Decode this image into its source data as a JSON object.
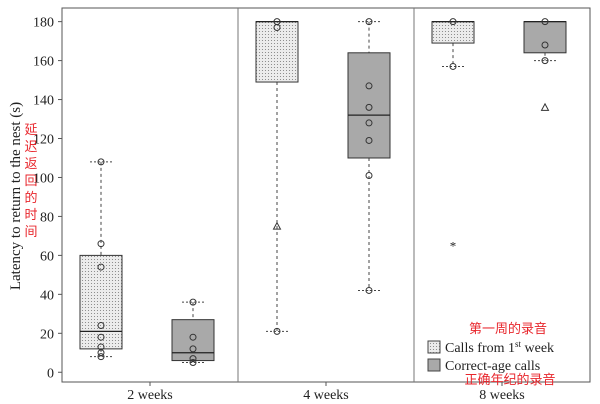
{
  "chart_data": {
    "type": "box",
    "ylabel": "Latency to return to the nest (s)",
    "ylabel_annotation_chinese": [
      "延",
      "迟",
      "返",
      "回",
      "的",
      "时",
      "间"
    ],
    "ylim": [
      -5,
      187
    ],
    "yticks": [
      0,
      20,
      40,
      60,
      80,
      100,
      120,
      140,
      160,
      180
    ],
    "grid": false,
    "panels": [
      {
        "label": "2 weeks",
        "boxes": [
          {
            "series": "Calls from 1st week",
            "q1": 12,
            "median": 21,
            "q3": 60,
            "whisker_low": 8,
            "whisker_high": 108,
            "points": [
              108,
              66,
              54,
              24,
              18,
              13,
              10,
              8
            ],
            "outliers": []
          },
          {
            "series": "Correct-age calls",
            "q1": 6,
            "median": 10,
            "q3": 27,
            "whisker_low": 5,
            "whisker_high": 36,
            "points": [
              36,
              18,
              12,
              7,
              5
            ],
            "outliers": []
          }
        ]
      },
      {
        "label": "4 weeks",
        "boxes": [
          {
            "series": "Calls from 1st week",
            "q1": 149,
            "median": 180,
            "q3": 180,
            "whisker_low": 21,
            "whisker_high": 180,
            "points": [
              180,
              177,
              21
            ],
            "outliers": [
              {
                "value": 75,
                "marker": "triangle"
              }
            ]
          },
          {
            "series": "Correct-age calls",
            "q1": 110,
            "median": 132,
            "q3": 164,
            "whisker_low": 42,
            "whisker_high": 180,
            "points": [
              180,
              147,
              136,
              128,
              119,
              101,
              42
            ],
            "outliers": []
          }
        ]
      },
      {
        "label": "8 weeks",
        "boxes": [
          {
            "series": "Calls from 1st week",
            "q1": 169,
            "median": 180,
            "q3": 180,
            "whisker_low": 157,
            "whisker_high": 180,
            "points": [
              180,
              157
            ],
            "outliers": [
              {
                "value": 65,
                "marker": "star"
              }
            ]
          },
          {
            "series": "Correct-age calls",
            "q1": 164,
            "median": 180,
            "q3": 180,
            "whisker_low": 160,
            "whisker_high": 180,
            "points": [
              180,
              168,
              160
            ],
            "outliers": [
              {
                "value": 136,
                "marker": "triangle"
              }
            ]
          }
        ]
      }
    ],
    "legend": {
      "position": "bottom-right",
      "annotation_top": "第一周的录音",
      "annotation_bottom": "正确年纪的录音",
      "entries": [
        {
          "label": "Calls from 1",
          "superscript": "st",
          "label_after": " week",
          "style": "dotted-light"
        },
        {
          "label": "Correct-age calls",
          "style": "solid-gray"
        }
      ]
    },
    "colors": {
      "box_1st_week_fill": "#e4e4e4",
      "box_correct_fill": "#a9a9a9",
      "annotation_red": "#e8262c",
      "axis": "#555555"
    }
  }
}
